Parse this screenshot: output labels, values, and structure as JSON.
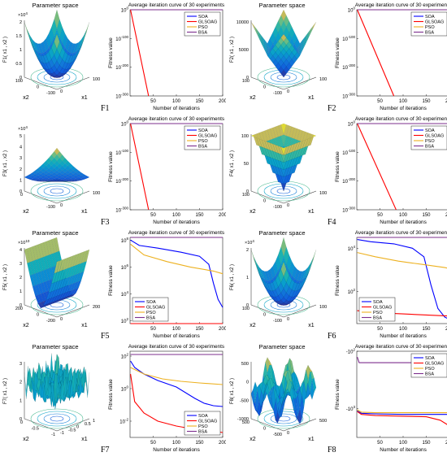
{
  "chart_data": [
    {
      "id": "F1",
      "function_label": "F1",
      "surface": {
        "title": "Parameter space",
        "zlabel": "F1( x1 , x2 )",
        "xlabel": "x1",
        "ylabel": "x2",
        "zscale_note": "×10^4",
        "zticks": [
          "0",
          "0.5",
          "1",
          "1.5",
          "2"
        ],
        "xticks": [
          "100",
          "0"
        ],
        "yticks": [
          "100",
          "0",
          "-100"
        ],
        "shape": "bowl"
      },
      "convergence": {
        "type": "line",
        "title": "Average iteration curve of 30 experiments",
        "xlabel": "Number of iterations",
        "ylabel": "Fitness value",
        "xlim": [
          0,
          200
        ],
        "xticks": [
          "50",
          "100",
          "150",
          "200"
        ],
        "y_log_exponents": [
          0,
          -300
        ],
        "yticks": [
          "10^0",
          "10^-100",
          "10^-200",
          "10^-300"
        ],
        "legend_position": "top-right",
        "series": [
          {
            "name": "SOA",
            "color": "#0000ff",
            "x": [
              1,
              200
            ],
            "y_log": [
              0,
              0
            ]
          },
          {
            "name": "GLSOAG",
            "color": "#ff0000",
            "x": [
              1,
              40
            ],
            "y_log": [
              0,
              -300
            ]
          },
          {
            "name": "PSO",
            "color": "#edb120",
            "x": [
              1,
              200
            ],
            "y_log": [
              0,
              0
            ]
          },
          {
            "name": "BSA",
            "color": "#7e2f8e",
            "x": [
              1,
              200
            ],
            "y_log": [
              0,
              0
            ]
          }
        ]
      }
    },
    {
      "id": "F2",
      "function_label": "F2",
      "surface": {
        "title": "Parameter space",
        "zlabel": "F2( x1 , x2 )",
        "xlabel": "x1",
        "ylabel": "x2",
        "zscale_note": "",
        "zticks": [
          "0",
          "5000",
          "10000"
        ],
        "xticks": [
          "100",
          "0"
        ],
        "yticks": [
          "100",
          "0",
          "-100"
        ],
        "shape": "pyramid"
      },
      "convergence": {
        "type": "line",
        "title": "Average iteration curve of 30 experiments",
        "xlabel": "Number of iterations",
        "ylabel": "Fitness value",
        "xlim": [
          0,
          200
        ],
        "xticks": [
          "50",
          "100",
          "150",
          "200"
        ],
        "y_log_exponents": [
          0,
          -300
        ],
        "yticks": [
          "10^0",
          "10^-100",
          "10^-200",
          "10^-300"
        ],
        "legend_position": "top-right",
        "series": [
          {
            "name": "SOA",
            "color": "#0000ff",
            "x": [
              1,
              200
            ],
            "y_log": [
              0,
              0
            ]
          },
          {
            "name": "GLSOAG",
            "color": "#ff0000",
            "x": [
              1,
              80
            ],
            "y_log": [
              0,
              -300
            ]
          },
          {
            "name": "PSO",
            "color": "#edb120",
            "x": [
              1,
              200
            ],
            "y_log": [
              0,
              0
            ]
          },
          {
            "name": "BSA",
            "color": "#7e2f8e",
            "x": [
              1,
              200
            ],
            "y_log": [
              0,
              0
            ]
          }
        ]
      }
    },
    {
      "id": "F3",
      "function_label": "F3",
      "surface": {
        "title": "",
        "zlabel": "F3( x1 , x2 )",
        "xlabel": "x1",
        "ylabel": "x2",
        "zscale_note": "×10^4",
        "zticks": [
          "0",
          "1",
          "2",
          "3",
          "4",
          "5"
        ],
        "xticks": [
          "100",
          "0"
        ],
        "yticks": [
          "0",
          "-100"
        ],
        "shape": "wedge"
      },
      "convergence": {
        "type": "line",
        "title": "Average iteration curve of 30 experiments",
        "xlabel": "Number of iterations",
        "ylabel": "Fitness value",
        "xlim": [
          0,
          200
        ],
        "xticks": [
          "50",
          "100",
          "150",
          "200"
        ],
        "y_log_exponents": [
          0,
          -300
        ],
        "yticks": [
          "10^0",
          "10^-100",
          "10^-200",
          "10^-300"
        ],
        "legend_position": "top-right",
        "series": [
          {
            "name": "SOA",
            "color": "#0000ff",
            "x": [
              1,
              200
            ],
            "y_log": [
              0,
              0
            ]
          },
          {
            "name": "GLSOAG",
            "color": "#ff0000",
            "x": [
              1,
              40
            ],
            "y_log": [
              0,
              -300
            ]
          },
          {
            "name": "PSO",
            "color": "#edb120",
            "x": [
              1,
              200
            ],
            "y_log": [
              0,
              0
            ]
          },
          {
            "name": "BSA",
            "color": "#7e2f8e",
            "x": [
              1,
              200
            ],
            "y_log": [
              0,
              0
            ]
          }
        ]
      }
    },
    {
      "id": "F4",
      "function_label": "F4",
      "surface": {
        "title": "",
        "zlabel": "F4( x1 , x2 )",
        "xlabel": "x1",
        "ylabel": "x2",
        "zscale_note": "",
        "zticks": [
          "0",
          "50",
          "100"
        ],
        "xticks": [
          "100",
          "0"
        ],
        "yticks": [
          "100",
          "0",
          "-100"
        ],
        "shape": "inverted-pyramid"
      },
      "convergence": {
        "type": "line",
        "title": "Average iteration curve of 30 experiments",
        "xlabel": "Number of iterations",
        "ylabel": "Fitness value",
        "xlim": [
          0,
          200
        ],
        "xticks": [
          "50",
          "100",
          "150",
          "200"
        ],
        "y_log_exponents": [
          0,
          -300
        ],
        "yticks": [
          "10^0",
          "10^-100",
          "10^-200",
          "10^-300"
        ],
        "legend_position": "top-right",
        "series": [
          {
            "name": "SOA",
            "color": "#0000ff",
            "x": [
              1,
              200
            ],
            "y_log": [
              0,
              0
            ]
          },
          {
            "name": "GLSOAG",
            "color": "#ff0000",
            "x": [
              1,
              85
            ],
            "y_log": [
              0,
              -300
            ]
          },
          {
            "name": "PSO",
            "color": "#edb120",
            "x": [
              1,
              200
            ],
            "y_log": [
              0,
              0
            ]
          },
          {
            "name": "BSA",
            "color": "#7e2f8e",
            "x": [
              1,
              200
            ],
            "y_log": [
              0,
              0
            ]
          }
        ]
      }
    },
    {
      "id": "F5",
      "function_label": "F5",
      "surface": {
        "title": "Parameter space",
        "zlabel": "F5( x1 , x2 )",
        "xlabel": "x1",
        "ylabel": "x2",
        "zscale_note": "×10^10",
        "zticks": [
          "0",
          "1",
          "2",
          "3",
          "4"
        ],
        "xticks": [
          "200",
          "0"
        ],
        "yticks": [
          "200",
          "0",
          "-200"
        ],
        "shape": "ridge"
      },
      "convergence": {
        "type": "line",
        "title": "Average iteration curve of 30 experiments",
        "xlabel": "Number of iterations",
        "ylabel": "Fitness value",
        "xlim": [
          0,
          200
        ],
        "xticks": [
          "50",
          "100",
          "150",
          "200"
        ],
        "y_log_exponents": [
          8.2,
          1.8
        ],
        "yticks": [
          "10^2",
          "10^4",
          "10^6",
          "10^8"
        ],
        "legend_position": "bottom-left",
        "series": [
          {
            "name": "SOA",
            "color": "#0000ff",
            "x": [
              1,
              20,
              60,
              110,
              150,
              170,
              180,
              190,
              200
            ],
            "y_log": [
              8.0,
              7.6,
              7.4,
              7.1,
              6.8,
              6.2,
              4.8,
              3.6,
              3.0
            ]
          },
          {
            "name": "GLSOAG",
            "color": "#ff0000",
            "x": [
              1,
              5,
              10,
              200
            ],
            "y_log": [
              1.8,
              1.8,
              1.8,
              1.8
            ]
          },
          {
            "name": "PSO",
            "color": "#edb120",
            "x": [
              1,
              30,
              80,
              130,
              180,
              200
            ],
            "y_log": [
              7.7,
              6.9,
              6.4,
              6.0,
              5.7,
              5.5
            ]
          },
          {
            "name": "BSA",
            "color": "#7e2f8e",
            "x": [
              1,
              200
            ],
            "y_log": [
              8.2,
              8.2
            ]
          }
        ]
      }
    },
    {
      "id": "F6",
      "function_label": "F6",
      "surface": {
        "title": "Parameter space",
        "zlabel": "F6( x1 , x2 )",
        "xlabel": "x1",
        "ylabel": "x2",
        "zscale_note": "×10^4",
        "zticks": [
          "0",
          "1",
          "2"
        ],
        "xticks": [
          "100",
          "0"
        ],
        "yticks": [
          "100",
          "0",
          "-100"
        ],
        "shape": "bowl"
      },
      "convergence": {
        "type": "line",
        "title": "Average iteration curve of 30 experiments",
        "xlabel": "Number of iterations",
        "ylabel": "Fitness value",
        "xlim": [
          0,
          200
        ],
        "xticks": [
          "50",
          "100",
          "150",
          "200"
        ],
        "y_log_exponents": [
          4.5,
          0.5
        ],
        "yticks": [
          "10^2",
          "10^4"
        ],
        "legend_position": "bottom-left",
        "series": [
          {
            "name": "SOA",
            "color": "#0000ff",
            "x": [
              1,
              30,
              80,
              120,
              145,
              160,
              175,
              190,
              200
            ],
            "y_log": [
              4.4,
              4.3,
              4.2,
              4.0,
              3.6,
              2.3,
              1.2,
              0.8,
              0.7
            ]
          },
          {
            "name": "GLSOAG",
            "color": "#ff0000",
            "x": [
              1,
              50,
              100,
              150,
              200
            ],
            "y_log": [
              1.1,
              1.0,
              0.95,
              0.9,
              0.85
            ]
          },
          {
            "name": "PSO",
            "color": "#edb120",
            "x": [
              1,
              40,
              90,
              140,
              190,
              200
            ],
            "y_log": [
              3.8,
              3.6,
              3.4,
              3.25,
              3.1,
              3.05
            ]
          },
          {
            "name": "BSA",
            "color": "#7e2f8e",
            "x": [
              1,
              200
            ],
            "y_log": [
              4.5,
              4.5
            ]
          }
        ]
      }
    },
    {
      "id": "F7",
      "function_label": "F7",
      "surface": {
        "title": "Parameter space",
        "zlabel": "F7( x1 , x2 )",
        "xlabel": "x1",
        "ylabel": "x2",
        "zscale_note": "",
        "zticks": [
          "0",
          "1",
          "2",
          "3"
        ],
        "xticks": [
          "1",
          "0.5",
          "0",
          "-0.5",
          "-1"
        ],
        "yticks": [
          "0",
          "-0.5",
          "-1"
        ],
        "shape": "rugged"
      },
      "convergence": {
        "type": "line",
        "title": "Average iteration curve of 30 experiments",
        "xlabel": "Number of iterations",
        "ylabel": "Fitness value",
        "xlim": [
          0,
          200
        ],
        "xticks": [
          "50",
          "100",
          "150",
          "200"
        ],
        "y_log_exponents": [
          2.3,
          -3.0
        ],
        "yticks": [
          "10^2",
          "10^0",
          "10^-2"
        ],
        "legend_position": "bottom-right",
        "series": [
          {
            "name": "SOA",
            "color": "#0000ff",
            "x": [
              1,
              10,
              30,
              60,
              100,
              140,
              160,
              180,
              200
            ],
            "y_log": [
              1.7,
              1.3,
              0.9,
              0.5,
              0.1,
              -0.6,
              -0.9,
              -1.05,
              -1.1
            ]
          },
          {
            "name": "GLSOAG",
            "color": "#ff0000",
            "x": [
              1,
              10,
              30,
              60,
              100,
              140,
              180,
              200
            ],
            "y_log": [
              0.9,
              -0.8,
              -1.5,
              -2.0,
              -2.3,
              -2.5,
              -2.6,
              -2.7
            ]
          },
          {
            "name": "PSO",
            "color": "#edb120",
            "x": [
              1,
              30,
              70,
              110,
              150,
              200
            ],
            "y_log": [
              1.3,
              0.9,
              0.6,
              0.45,
              0.35,
              0.25
            ]
          },
          {
            "name": "BSA",
            "color": "#7e2f8e",
            "x": [
              1,
              200
            ],
            "y_log": [
              2.1,
              2.1
            ]
          }
        ]
      }
    },
    {
      "id": "F8",
      "function_label": "F8",
      "surface": {
        "title": "Parameter space",
        "zlabel": "F8( x1 , x2 )",
        "xlabel": "x1",
        "ylabel": "x2",
        "zscale_note": "",
        "zticks": [
          "-1000",
          "-500",
          "0",
          "500"
        ],
        "xticks": [
          "500",
          "0"
        ],
        "yticks": [
          "500",
          "0",
          "-500"
        ],
        "shape": "egg"
      },
      "convergence": {
        "type": "line",
        "title": "Average iteration curve of 30 experiments",
        "xlabel": "Number of iterations",
        "ylabel": "Fitness value",
        "xlim": [
          0,
          200
        ],
        "xticks": [
          "50",
          "100",
          "150",
          "200"
        ],
        "y_log_exponents": [
          2.0,
          3.5
        ],
        "yticks": [
          "-10^2",
          "-10^3"
        ],
        "legend_position": "top-right",
        "series": [
          {
            "name": "SOA",
            "color": "#0000ff",
            "x": [
              1,
              10,
              40,
              100,
              150,
              200
            ],
            "y_log": [
              3.04,
              3.08,
              3.09,
              3.1,
              3.1,
              3.1
            ]
          },
          {
            "name": "GLSOAG",
            "color": "#ff0000",
            "x": [
              1,
              10,
              40,
              100,
              150,
              180,
              200
            ],
            "y_log": [
              3.05,
              3.1,
              3.12,
              3.13,
              3.14,
              3.2,
              3.3
            ]
          },
          {
            "name": "PSO",
            "color": "#edb120",
            "x": [
              1,
              10,
              40,
              100,
              150,
              200
            ],
            "y_log": [
              3.02,
              3.06,
              3.07,
              3.07,
              3.07,
              3.07
            ]
          },
          {
            "name": "BSA",
            "color": "#7e2f8e",
            "x": [
              1,
              5,
              200
            ],
            "y_log": [
              2.1,
              2.2,
              2.2
            ]
          }
        ]
      }
    }
  ]
}
